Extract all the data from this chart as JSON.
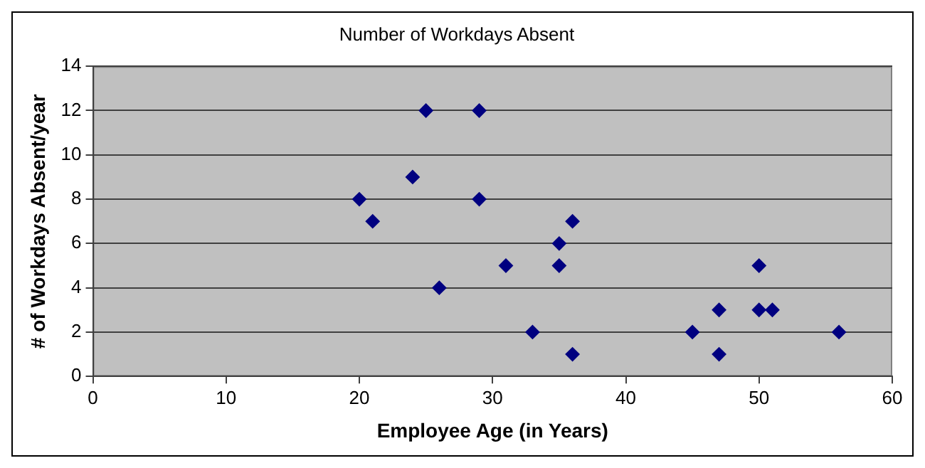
{
  "chart_data": {
    "type": "scatter",
    "title": "Number of Workdays Absent",
    "xlabel": "Employee Age (in Years)",
    "ylabel": "# of Workdays Absent/year",
    "x": [
      20,
      21,
      24,
      25,
      26,
      29,
      29,
      31,
      33,
      35,
      35,
      36,
      36,
      45,
      47,
      47,
      50,
      50,
      51,
      56
    ],
    "series": [
      {
        "color": "#000080",
        "values": [
          8,
          7,
          9,
          12,
          4,
          12,
          8,
          5,
          2,
          6,
          5,
          7,
          1,
          2,
          3,
          1,
          5,
          3,
          3,
          2
        ]
      }
    ],
    "xlim": [
      0,
      60
    ],
    "xticks": [
      0,
      10,
      20,
      30,
      40,
      50,
      60
    ],
    "ylim": [
      0,
      14
    ],
    "yticks": [
      0,
      2,
      4,
      6,
      8,
      10,
      12,
      14
    ],
    "grid": "y",
    "legend": false,
    "marker": "diamond"
  }
}
